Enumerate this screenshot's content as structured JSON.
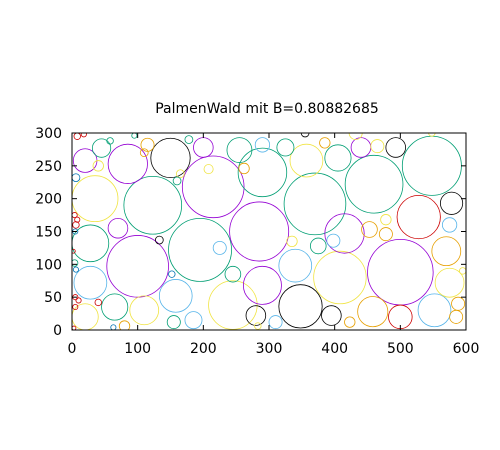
{
  "chart_data": {
    "type": "scatter",
    "title": "PalmenWald mit B=0.80882685",
    "xlabel": "",
    "ylabel": "",
    "xlim": [
      0,
      600
    ],
    "ylim": [
      0,
      300
    ],
    "x_ticks": [
      0,
      100,
      200,
      300,
      400,
      500,
      600
    ],
    "y_ticks": [
      0,
      50,
      100,
      150,
      200,
      250,
      300
    ],
    "grid": false,
    "legend": "none",
    "colors": {
      "purple": "#9400d3",
      "teal": "#009e73",
      "blue": "#56b4e9",
      "orange": "#e69f00",
      "yellow": "#f0e442",
      "navy": "#0072b2",
      "red": "#cc0000",
      "black": "#000000"
    },
    "circles": [
      {
        "x": 548,
        "y": 250,
        "r": 45,
        "c": "teal"
      },
      {
        "x": 500,
        "y": 88,
        "r": 50,
        "c": "purple"
      },
      {
        "x": 370,
        "y": 192,
        "r": 47,
        "c": "teal"
      },
      {
        "x": 215,
        "y": 218,
        "r": 47,
        "c": "purple"
      },
      {
        "x": 195,
        "y": 122,
        "r": 48,
        "c": "teal"
      },
      {
        "x": 285,
        "y": 150,
        "r": 45,
        "c": "purple"
      },
      {
        "x": 100,
        "y": 97,
        "r": 47,
        "c": "purple"
      },
      {
        "x": 123,
        "y": 190,
        "r": 44,
        "c": "teal"
      },
      {
        "x": 460,
        "y": 222,
        "r": 44,
        "c": "teal"
      },
      {
        "x": 408,
        "y": 80,
        "r": 40,
        "c": "yellow"
      },
      {
        "x": 245,
        "y": 38,
        "r": 37,
        "c": "yellow"
      },
      {
        "x": 348,
        "y": 36,
        "r": 33,
        "c": "black"
      },
      {
        "x": 290,
        "y": 240,
        "r": 37,
        "c": "teal"
      },
      {
        "x": 150,
        "y": 262,
        "r": 30,
        "c": "black"
      },
      {
        "x": 85,
        "y": 253,
        "r": 30,
        "c": "purple"
      },
      {
        "x": 290,
        "y": 68,
        "r": 29,
        "c": "purple"
      },
      {
        "x": 35,
        "y": 200,
        "r": 35,
        "c": "yellow"
      },
      {
        "x": 528,
        "y": 172,
        "r": 33,
        "c": "red"
      },
      {
        "x": 415,
        "y": 147,
        "r": 30,
        "c": "purple"
      },
      {
        "x": 340,
        "y": 98,
        "r": 25,
        "c": "blue"
      },
      {
        "x": 28,
        "y": 132,
        "r": 28,
        "c": "teal"
      },
      {
        "x": 28,
        "y": 72,
        "r": 25,
        "c": "blue"
      },
      {
        "x": 158,
        "y": 52,
        "r": 25,
        "c": "blue"
      },
      {
        "x": 458,
        "y": 28,
        "r": 23,
        "c": "orange"
      },
      {
        "x": 552,
        "y": 30,
        "r": 25,
        "c": "blue"
      },
      {
        "x": 570,
        "y": 120,
        "r": 22,
        "c": "orange"
      },
      {
        "x": 575,
        "y": 72,
        "r": 22,
        "c": "yellow"
      },
      {
        "x": 357,
        "y": 258,
        "r": 25,
        "c": "yellow"
      },
      {
        "x": 405,
        "y": 262,
        "r": 20,
        "c": "teal"
      },
      {
        "x": 255,
        "y": 274,
        "r": 19,
        "c": "teal"
      },
      {
        "x": 110,
        "y": 30,
        "r": 22,
        "c": "yellow"
      },
      {
        "x": 65,
        "y": 35,
        "r": 20,
        "c": "teal"
      },
      {
        "x": 20,
        "y": 20,
        "r": 20,
        "c": "yellow"
      },
      {
        "x": 20,
        "y": 258,
        "r": 18,
        "c": "purple"
      },
      {
        "x": 200,
        "y": 278,
        "r": 15,
        "c": "purple"
      },
      {
        "x": 45,
        "y": 277,
        "r": 14,
        "c": "teal"
      },
      {
        "x": 115,
        "y": 282,
        "r": 10,
        "c": "orange"
      },
      {
        "x": 185,
        "y": 15,
        "r": 13,
        "c": "blue"
      },
      {
        "x": 155,
        "y": 12,
        "r": 10,
        "c": "teal"
      },
      {
        "x": 280,
        "y": 22,
        "r": 15,
        "c": "black"
      },
      {
        "x": 310,
        "y": 12,
        "r": 10,
        "c": "blue"
      },
      {
        "x": 395,
        "y": 22,
        "r": 15,
        "c": "black"
      },
      {
        "x": 500,
        "y": 20,
        "r": 18,
        "c": "red"
      },
      {
        "x": 585,
        "y": 20,
        "r": 10,
        "c": "orange"
      },
      {
        "x": 588,
        "y": 40,
        "r": 10,
        "c": "orange"
      },
      {
        "x": 578,
        "y": 193,
        "r": 17,
        "c": "black"
      },
      {
        "x": 575,
        "y": 160,
        "r": 11,
        "c": "blue"
      },
      {
        "x": 493,
        "y": 278,
        "r": 15,
        "c": "black"
      },
      {
        "x": 440,
        "y": 278,
        "r": 15,
        "c": "purple"
      },
      {
        "x": 465,
        "y": 280,
        "r": 10,
        "c": "yellow"
      },
      {
        "x": 432,
        "y": 300,
        "r": 10,
        "c": "yellow"
      },
      {
        "x": 325,
        "y": 278,
        "r": 13,
        "c": "teal"
      },
      {
        "x": 290,
        "y": 282,
        "r": 11,
        "c": "blue"
      },
      {
        "x": 385,
        "y": 285,
        "r": 8,
        "c": "orange"
      },
      {
        "x": 225,
        "y": 125,
        "r": 10,
        "c": "blue"
      },
      {
        "x": 245,
        "y": 85,
        "r": 12,
        "c": "teal"
      },
      {
        "x": 70,
        "y": 155,
        "r": 15,
        "c": "purple"
      },
      {
        "x": 375,
        "y": 128,
        "r": 12,
        "c": "teal"
      },
      {
        "x": 398,
        "y": 136,
        "r": 10,
        "c": "blue"
      },
      {
        "x": 453,
        "y": 153,
        "r": 12,
        "c": "orange"
      },
      {
        "x": 478,
        "y": 146,
        "r": 10,
        "c": "orange"
      },
      {
        "x": 478,
        "y": 168,
        "r": 8,
        "c": "yellow"
      },
      {
        "x": 335,
        "y": 135,
        "r": 8,
        "c": "yellow"
      },
      {
        "x": 110,
        "y": 270,
        "r": 6,
        "c": "orange"
      },
      {
        "x": 262,
        "y": 246,
        "r": 8,
        "c": "orange"
      },
      {
        "x": 208,
        "y": 245,
        "r": 7,
        "c": "yellow"
      },
      {
        "x": 165,
        "y": 238,
        "r": 6,
        "c": "yellow"
      },
      {
        "x": 160,
        "y": 227,
        "r": 6,
        "c": "teal"
      },
      {
        "x": 8,
        "y": 295,
        "r": 5,
        "c": "red"
      },
      {
        "x": 18,
        "y": 298,
        "r": 4,
        "c": "red"
      },
      {
        "x": 58,
        "y": 288,
        "r": 5,
        "c": "teal"
      },
      {
        "x": 95,
        "y": 296,
        "r": 4,
        "c": "teal"
      },
      {
        "x": 178,
        "y": 290,
        "r": 6,
        "c": "teal"
      },
      {
        "x": 6,
        "y": 232,
        "r": 6,
        "c": "navy"
      },
      {
        "x": 4,
        "y": 175,
        "r": 4,
        "c": "red"
      },
      {
        "x": 8,
        "y": 168,
        "r": 4,
        "c": "red"
      },
      {
        "x": 6,
        "y": 160,
        "r": 5,
        "c": "red"
      },
      {
        "x": 5,
        "y": 150,
        "r": 4,
        "c": "navy"
      },
      {
        "x": 4,
        "y": 102,
        "r": 5,
        "c": "teal"
      },
      {
        "x": 6,
        "y": 92,
        "r": 4,
        "c": "navy"
      },
      {
        "x": 5,
        "y": 50,
        "r": 4,
        "c": "red"
      },
      {
        "x": 10,
        "y": 45,
        "r": 4,
        "c": "red"
      },
      {
        "x": 5,
        "y": 35,
        "r": 4,
        "c": "red"
      },
      {
        "x": 40,
        "y": 42,
        "r": 5,
        "c": "red"
      },
      {
        "x": 80,
        "y": 6,
        "r": 8,
        "c": "orange"
      },
      {
        "x": 63,
        "y": 4,
        "r": 4,
        "c": "navy"
      },
      {
        "x": 133,
        "y": 137,
        "r": 6,
        "c": "black"
      },
      {
        "x": 152,
        "y": 85,
        "r": 5,
        "c": "navy"
      },
      {
        "x": 355,
        "y": 300,
        "r": 6,
        "c": "black"
      },
      {
        "x": 548,
        "y": 300,
        "r": 5,
        "c": "yellow"
      },
      {
        "x": 283,
        "y": 6,
        "r": 5,
        "c": "yellow"
      },
      {
        "x": 423,
        "y": 12,
        "r": 8,
        "c": "orange"
      },
      {
        "x": 595,
        "y": 90,
        "r": 5,
        "c": "yellow"
      },
      {
        "x": 3,
        "y": 3,
        "r": 3,
        "c": "red"
      },
      {
        "x": 2,
        "y": 120,
        "r": 3,
        "c": "red"
      },
      {
        "x": 40,
        "y": 250,
        "r": 8,
        "c": "yellow"
      }
    ]
  }
}
